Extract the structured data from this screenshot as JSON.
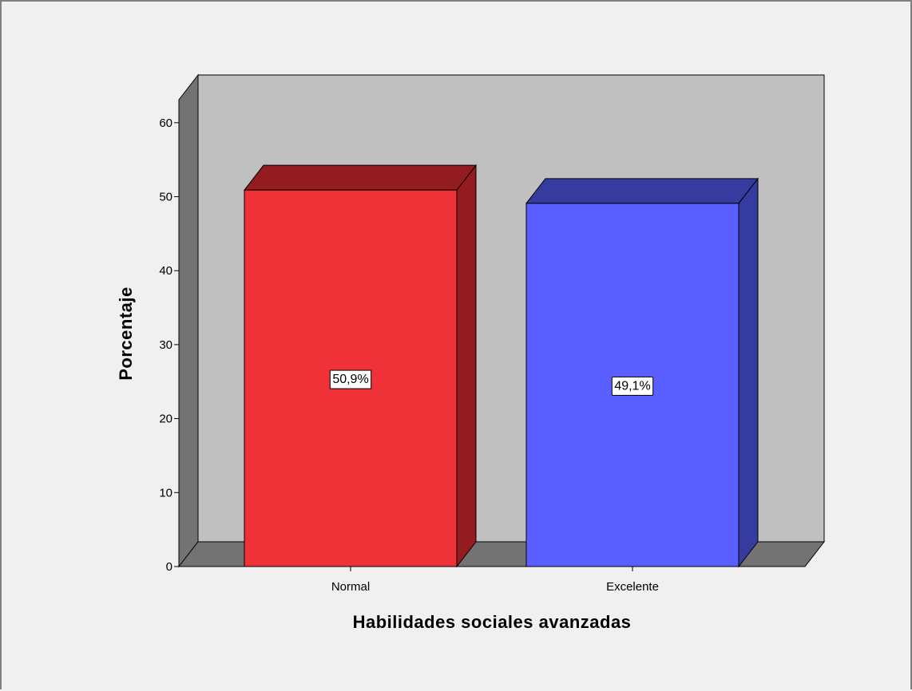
{
  "chart_data": {
    "type": "bar",
    "style": "3d",
    "categories": [
      "Normal",
      "Excelente"
    ],
    "values": [
      50.9,
      49.1
    ],
    "data_labels": [
      "50,9%",
      "49,1%"
    ],
    "title": "",
    "xlabel": "Habilidades sociales avanzadas",
    "ylabel": "Porcentaje",
    "ylim": [
      0,
      60
    ],
    "yticks": [
      0,
      10,
      20,
      30,
      40,
      50,
      60
    ],
    "ytick_labels": [
      "0",
      "10",
      "20",
      "30",
      "40",
      "50",
      "60"
    ],
    "grid": false,
    "legend": "none"
  },
  "colors": {
    "background": "#f0f0f0",
    "back_wall": "#c0c0c0",
    "side_wall": "#737373",
    "bars": [
      {
        "front": "#ef3237",
        "top": "#941b20",
        "side": "#941b20"
      },
      {
        "front": "#5a5fff",
        "top": "#363ba0",
        "side": "#363ba0"
      }
    ]
  }
}
